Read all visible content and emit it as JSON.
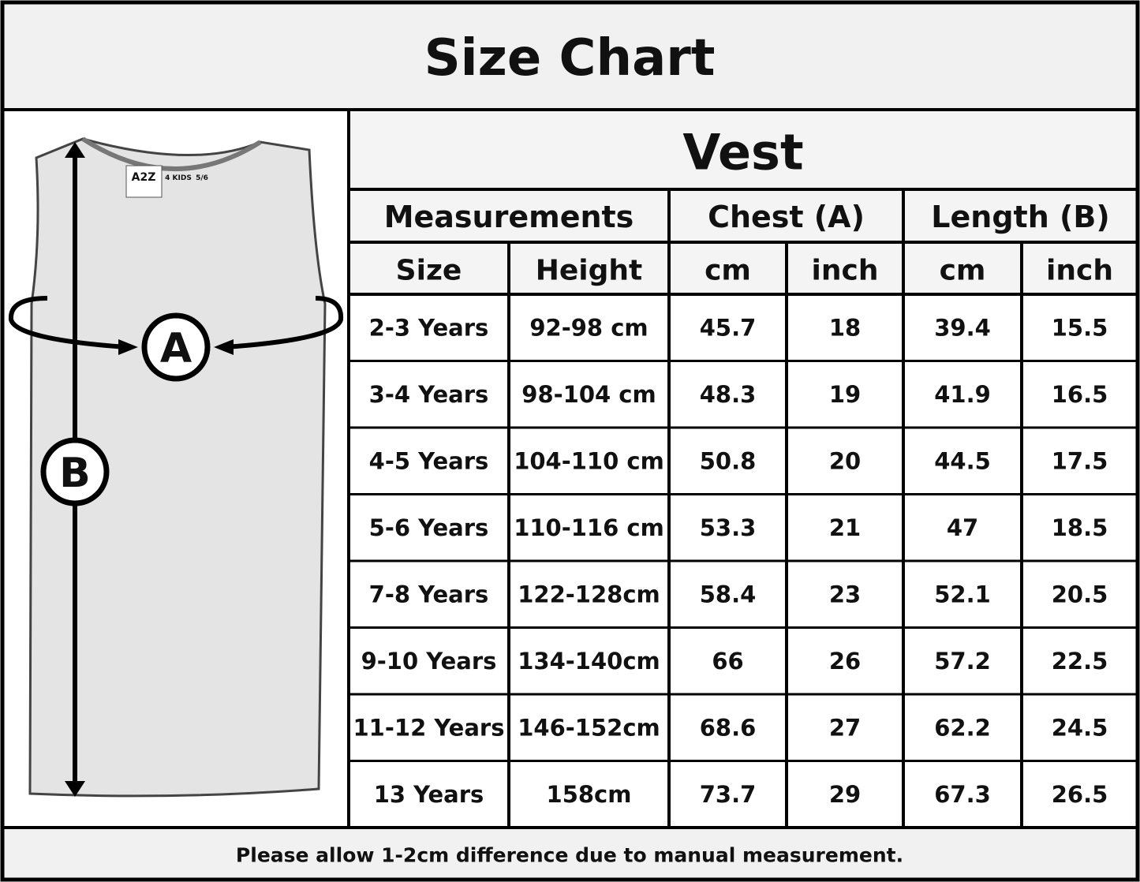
{
  "header": {
    "title": "Size Chart"
  },
  "figure": {
    "label_a": "A",
    "label_b": "B",
    "brand": "A2Z",
    "brand_sub": "4 KIDS",
    "tag_size": "5/6"
  },
  "table": {
    "title": "Vest",
    "groups": [
      "Measurements",
      "Chest (A)",
      "Length (B)"
    ],
    "columns": [
      "Size",
      "Height",
      "cm",
      "inch",
      "cm",
      "inch"
    ],
    "rows": [
      [
        "2-3 Years",
        "92-98 cm",
        45.7,
        18,
        39.4,
        15.5
      ],
      [
        "3-4 Years",
        "98-104 cm",
        48.3,
        19,
        41.9,
        16.5
      ],
      [
        "4-5 Years",
        "104-110 cm",
        50.8,
        20,
        44.5,
        17.5
      ],
      [
        "5-6 Years",
        "110-116 cm",
        53.3,
        21,
        47,
        18.5
      ],
      [
        "7-8 Years",
        "122-128cm",
        58.4,
        23,
        52.1,
        20.5
      ],
      [
        "9-10 Years",
        "134-140cm",
        66,
        26,
        57.2,
        22.5
      ],
      [
        "11-12 Years",
        "146-152cm",
        68.6,
        27,
        62.2,
        24.5
      ],
      [
        "13 Years",
        "158cm",
        73.7,
        29,
        67.3,
        26.5
      ]
    ]
  },
  "footer": {
    "note": "Please allow 1-2cm difference due to manual measurement."
  }
}
